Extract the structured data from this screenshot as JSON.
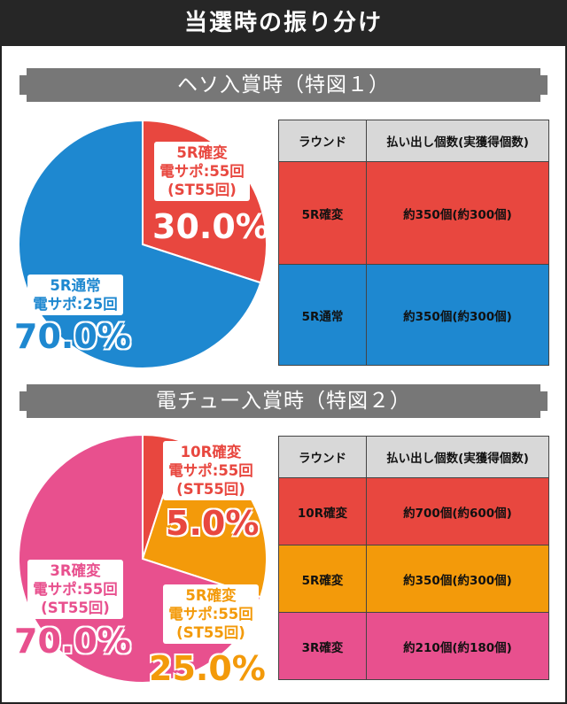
{
  "title": "当選時の振り分け",
  "colors": {
    "red": "#e8473f",
    "blue": "#1e88d0",
    "pink": "#e8508e",
    "orange": "#f39a0a",
    "dark": "#262626",
    "header_gray": "#d8d8d8"
  },
  "sections": [
    {
      "banner": "ヘソ入賞時（特図１）",
      "table": {
        "headers": [
          "ラウンド",
          "払い出し個数(実獲得個数)"
        ],
        "rows": [
          {
            "round": "5R確変",
            "payout": "約350個(約300個)",
            "color": "#e8473f"
          },
          {
            "round": "5R通常",
            "payout": "約350個(約300個)",
            "color": "#1e88d0"
          }
        ]
      }
    },
    {
      "banner": "電チュー入賞時（特図２）",
      "table": {
        "headers": [
          "ラウンド",
          "払い出し個数(実獲得個数)"
        ],
        "rows": [
          {
            "round": "10R確変",
            "payout": "約700個(約600個)",
            "color": "#e8473f"
          },
          {
            "round": "5R確変",
            "payout": "約350個(約300個)",
            "color": "#f39a0a"
          },
          {
            "round": "3R確変",
            "payout": "約210個(約180個)",
            "color": "#e8508e"
          }
        ]
      }
    }
  ],
  "chart_data": [
    {
      "type": "pie",
      "slices": [
        {
          "label": "5R確変\n電サポ:55回\n(ST55回)",
          "value": 30.0,
          "display": "30.0%",
          "color": "#e8473f"
        },
        {
          "label": "5R通常\n電サポ:25回",
          "value": 70.0,
          "display": "70.0%",
          "color": "#1e88d0"
        }
      ]
    },
    {
      "type": "pie",
      "slices": [
        {
          "label": "10R確変\n電サポ:55回\n(ST55回)",
          "value": 5.0,
          "display": "5.0%",
          "color": "#e8473f"
        },
        {
          "label": "5R確変\n電サポ:55回\n(ST55回)",
          "value": 25.0,
          "display": "25.0%",
          "color": "#f39a0a"
        },
        {
          "label": "3R確変\n電サポ:55回\n(ST55回)",
          "value": 70.0,
          "display": "70.0%",
          "color": "#e8508e"
        }
      ]
    }
  ]
}
